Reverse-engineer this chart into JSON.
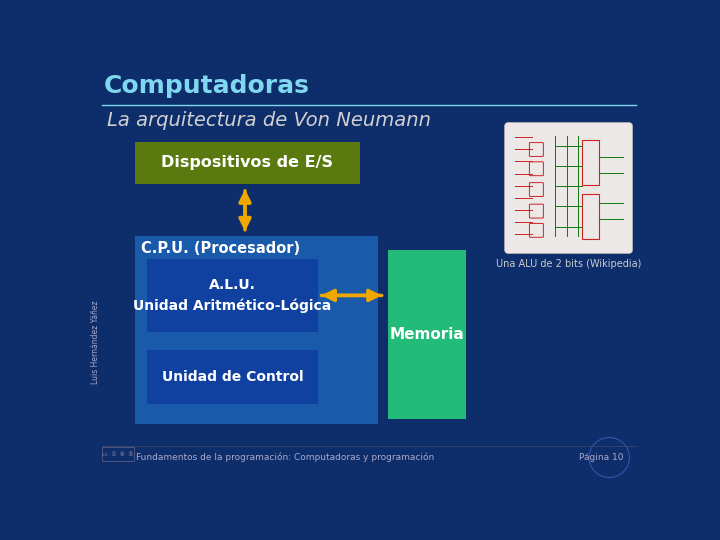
{
  "bg_color": "#0d2d6b",
  "title_text": "Computadoras",
  "title_color": "#7fd8f0",
  "title_fontsize": 18,
  "subtitle_text": "La arquitectura de Von Neumann",
  "subtitle_color": "#d0d0d0",
  "subtitle_fontsize": 14,
  "line_color": "#7fd8f0",
  "dispositivos_text": "Dispositivos de E/S",
  "dispositivos_color": "#5a7a10",
  "dispositivos_text_color": "#ffffff",
  "cpu_color": "#1a5aaa",
  "cpu_label": "C.P.U. (Procesador)",
  "cpu_text_color": "#ffffff",
  "alu_color": "#1040a0",
  "alu_text": "A.L.U.\nUnidad Aritmético-Lógica",
  "alu_text_color": "#ffffff",
  "uc_color": "#1040a0",
  "uc_text": "Unidad de Control",
  "uc_text_color": "#ffffff",
  "memoria_color": "#22bb77",
  "memoria_text": "Memoria",
  "memoria_text_color": "#ffffff",
  "arrow_color": "#f0a800",
  "caption_text": "Una ALU de 2 bits (Wikipedia)",
  "caption_color": "#cccccc",
  "caption_fontsize": 7,
  "footer_text": "Fundamentos de la programación: Computadoras y programación",
  "footer_right": "Página 10",
  "footer_color": "#aaaacc",
  "sidebar_text": "Luis Hernández Yáñez",
  "sidebar_color": "#aaaacc"
}
